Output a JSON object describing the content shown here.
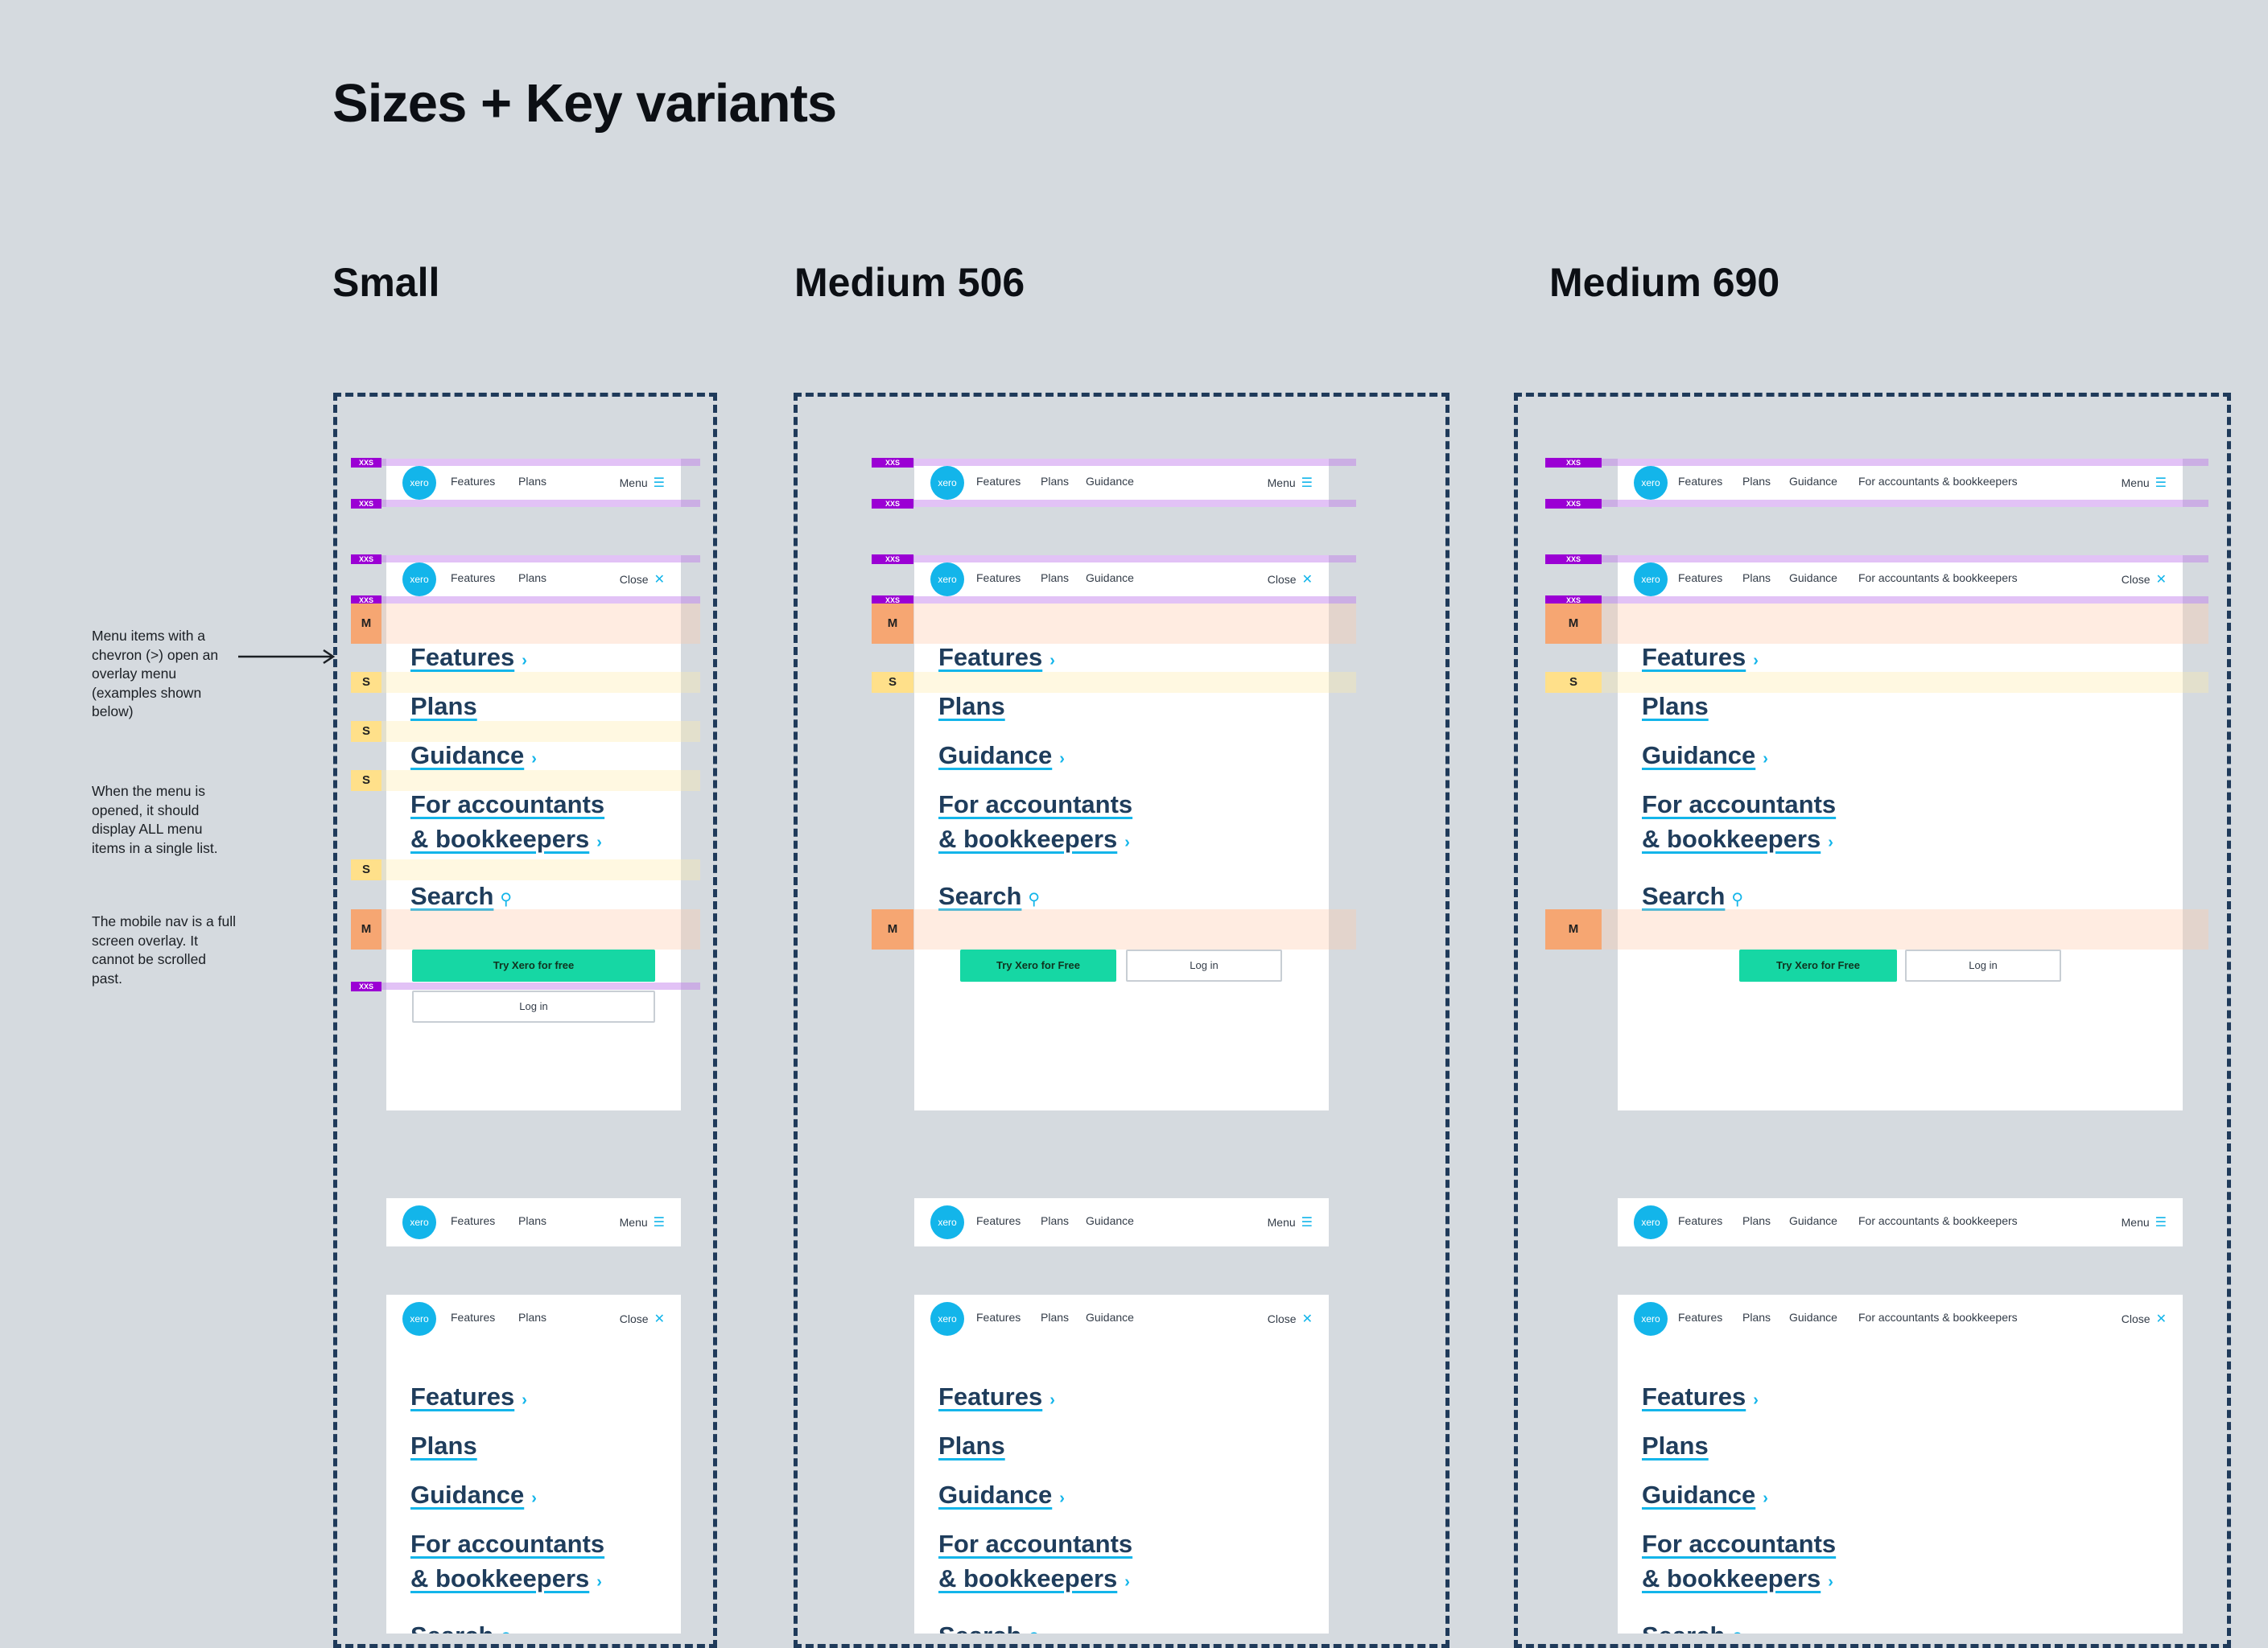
{
  "page": {
    "title": "Sizes + Key variants",
    "columns": [
      "Small",
      "Medium 506",
      "Medium 690"
    ]
  },
  "notes": [
    "Menu items with a chevron (>) open an overlay menu (examples shown below)",
    "When the menu is opened, it should display ALL menu items in a single list.",
    "The mobile nav is a full screen overlay. It cannot be scrolled past."
  ],
  "nav": {
    "logo": "xero",
    "links_small": [
      "Features",
      "Plans"
    ],
    "links_m506": [
      "Features",
      "Plans",
      "Guidance"
    ],
    "links_m690": [
      "Features",
      "Plans",
      "Guidance",
      "For accountants & bookkeepers"
    ],
    "menu_label": "Menu",
    "close_label": "Close",
    "menu_icon": "hamburger-icon",
    "close_icon": "close-icon"
  },
  "menu": {
    "features": "Features",
    "plans": "Plans",
    "guidance": "Guidance",
    "accountants_line1": "For accountants",
    "accountants_line2": "& bookkeepers",
    "search": "Search",
    "try_small": "Try Xero for free",
    "try_medium": "Try Xero for Free",
    "login": "Log in"
  },
  "spacing_labels": {
    "xxs": "XXS",
    "s": "S",
    "m": "M"
  },
  "colors": {
    "background": "#d5dadf",
    "xero_blue": "#13b5ea",
    "cta_green": "#16d7a4",
    "link_navy": "#1f3d5c",
    "xxs": "#9b00d4",
    "s": "#ffe08a",
    "m": "#f6a672"
  }
}
